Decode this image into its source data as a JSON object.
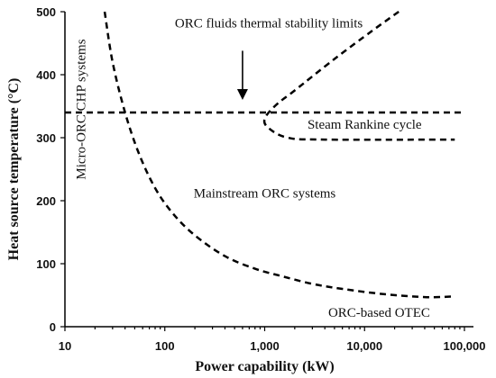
{
  "chart_data": {
    "type": "line",
    "title": "",
    "xlabel": "Power capability (kW)",
    "ylabel": "Heat source temperature (°C)",
    "x_scale": "log",
    "xlim": [
      10,
      100000
    ],
    "ylim": [
      0,
      500
    ],
    "x_ticks": [
      {
        "value": 10,
        "label": "10"
      },
      {
        "value": 100,
        "label": "100"
      },
      {
        "value": 1000,
        "label": "1,000"
      },
      {
        "value": 10000,
        "label": "10,000"
      },
      {
        "value": 100000,
        "label": "100,000"
      }
    ],
    "y_ticks": [
      {
        "value": 0,
        "label": "0"
      },
      {
        "value": 100,
        "label": "100"
      },
      {
        "value": 200,
        "label": "200"
      },
      {
        "value": 300,
        "label": "300"
      },
      {
        "value": 400,
        "label": "400"
      },
      {
        "value": 500,
        "label": "500"
      }
    ],
    "grid": false,
    "legend": "none",
    "series": [
      {
        "points": [
          [
            25,
            500
          ],
          [
            30,
            420
          ],
          [
            40,
            340
          ],
          [
            55,
            275
          ],
          [
            80,
            220
          ],
          [
            120,
            180
          ],
          [
            200,
            145
          ],
          [
            400,
            112
          ],
          [
            800,
            92
          ],
          [
            1500,
            80
          ],
          [
            3000,
            68
          ],
          [
            6000,
            60
          ],
          [
            15000,
            52
          ],
          [
            40000,
            47
          ],
          [
            80000,
            48
          ]
        ]
      },
      {
        "points": [
          [
            10,
            340
          ],
          [
            100000,
            340
          ]
        ]
      },
      {
        "points": [
          [
            22000,
            500
          ],
          [
            12000,
            470
          ],
          [
            5000,
            425
          ],
          [
            2000,
            375
          ],
          [
            1300,
            352
          ],
          [
            1000,
            330
          ],
          [
            1100,
            315
          ],
          [
            1700,
            300
          ],
          [
            4000,
            297
          ],
          [
            80000,
            297
          ]
        ]
      }
    ],
    "annotations": [
      {
        "text": "ORC fluids thermal stability limits",
        "x": 1100,
        "y": 475,
        "anchor": "middle"
      },
      {
        "text": "Micro-ORC CHP systems",
        "x": 16,
        "y": 345,
        "rotate": -90,
        "anchor": "middle"
      },
      {
        "text": "Steam Rankine cycle",
        "x": 10000,
        "y": 314,
        "anchor": "middle"
      },
      {
        "text": "Mainstream ORC systems",
        "x": 1000,
        "y": 205,
        "anchor": "middle"
      },
      {
        "text": "ORC-based OTEC",
        "x": 14000,
        "y": 16,
        "anchor": "middle"
      }
    ],
    "arrows": [
      {
        "from": [
          600,
          438
        ],
        "to": [
          600,
          360
        ]
      }
    ]
  }
}
